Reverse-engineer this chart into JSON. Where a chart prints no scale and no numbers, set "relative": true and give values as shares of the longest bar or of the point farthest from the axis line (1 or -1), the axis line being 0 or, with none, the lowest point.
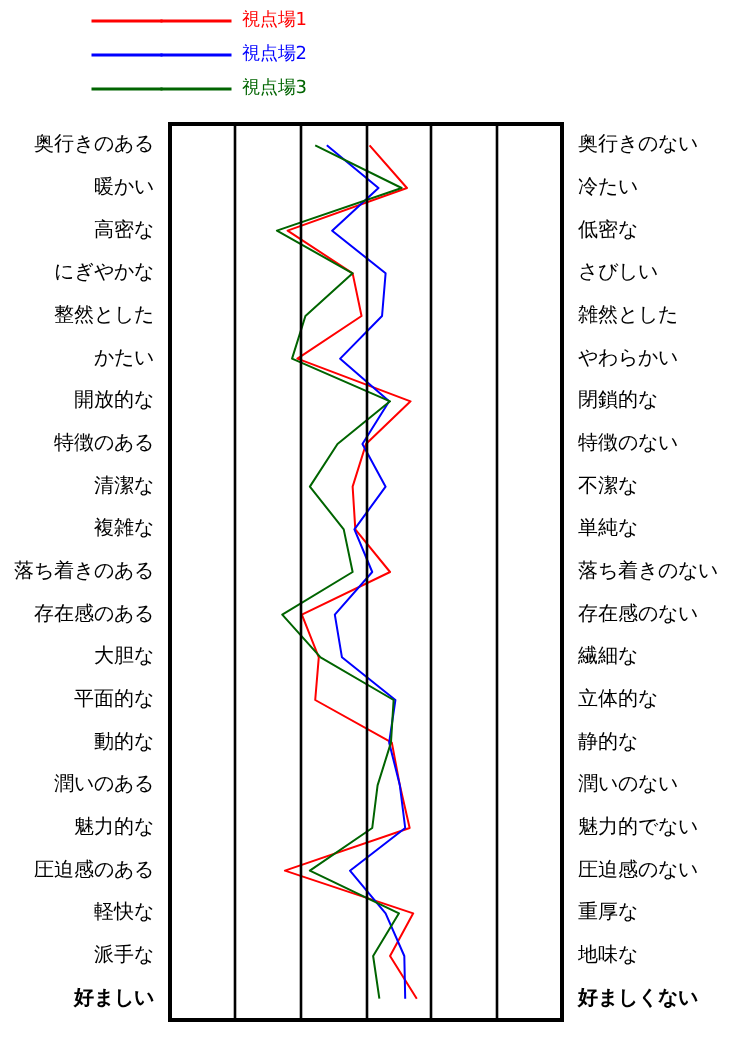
{
  "chart_data": {
    "type": "line",
    "orientation": "horizontal",
    "relative": true,
    "legend": "top left",
    "marker": "none",
    "categories": [
      "奥行きのある",
      "暖かい",
      "高密な",
      "にぎやかな",
      "整然とした",
      "かたい",
      "開放的な",
      "特徴のある",
      "清潔な",
      "複雑な",
      "落ち着きのある",
      "存在感のある",
      "大胆な",
      "平面的な",
      "動的な",
      "潤いのある",
      "魅力的な",
      "圧迫感のある",
      "軽快な",
      "派手な",
      "好ましい"
    ],
    "y2_categories": [
      "奥行きのない",
      "冷たい",
      "低密な",
      "さびしい",
      "雑然とした",
      "やわらかい",
      "閉鎖的な",
      "特徴のない",
      "不潔な",
      "単純な",
      "落ち着きのない",
      "存在感のない",
      "繊細な",
      "立体的な",
      "静的な",
      "潤いのない",
      "魅力的でない",
      "圧迫感のない",
      "重厚な",
      "地味な",
      "好ましくない"
    ],
    "ref_lines": [
      {
        "axis": "x",
        "value": -1.47,
        "color": "#000000"
      },
      {
        "axis": "x",
        "value": -0.73,
        "color": "#000000"
      },
      {
        "axis": "x",
        "value": 0,
        "color": "#000000"
      },
      {
        "axis": "x",
        "value": 0.73,
        "color": "#000000"
      },
      {
        "axis": "x",
        "value": 1.47,
        "color": "#000000"
      }
    ],
    "series": [
      {
        "name": "視点場1",
        "color": "#ff0000",
        "values": [
          0.04,
          0.46,
          -0.88,
          -0.15,
          -0.05,
          -0.77,
          0.5,
          0,
          -0.15,
          -0.12,
          0.27,
          -0.72,
          -0.53,
          -0.57,
          0.29,
          0.38,
          0.49,
          -0.91,
          0.53,
          0.27,
          0.57
        ]
      },
      {
        "name": "視点場2",
        "color": "#0000ff",
        "values": [
          -0.44,
          0.14,
          -0.38,
          0.22,
          0.18,
          -0.29,
          0.26,
          -0.04,
          0.22,
          -0.13,
          0.07,
          -0.35,
          -0.27,
          0.33,
          0.26,
          0.38,
          0.44,
          -0.18,
          0.22,
          0.43,
          0.44
        ]
      },
      {
        "name": "視点場3",
        "color": "#006400",
        "values": [
          -0.57,
          0.4,
          -1,
          -0.15,
          -0.68,
          -0.83,
          0.27,
          -0.32,
          -0.63,
          -0.25,
          -0.15,
          -0.94,
          -0.51,
          0.31,
          0.28,
          0.13,
          0.07,
          -0.63,
          0.37,
          0.08,
          0.15
        ]
      }
    ]
  }
}
